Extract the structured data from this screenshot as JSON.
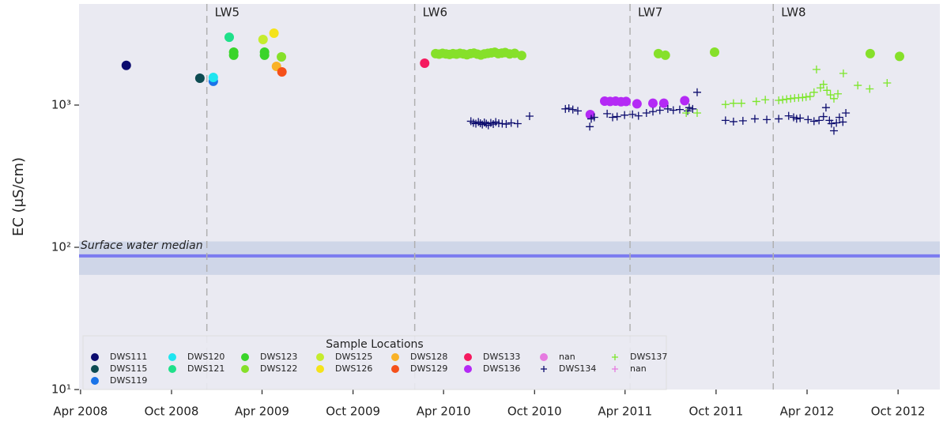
{
  "chart_data": {
    "type": "scatter",
    "y_label": "EC (μS/cm)",
    "x_scale": "time",
    "y_scale": "log",
    "xlim": [
      "2008-03-29",
      "2012-12-24"
    ],
    "ylim": [
      10,
      5140
    ],
    "xticks": [
      {
        "value": "2008-04-01",
        "label": "Apr 2008"
      },
      {
        "value": "2008-10-01",
        "label": "Oct 2008"
      },
      {
        "value": "2009-04-01",
        "label": "Apr 2009"
      },
      {
        "value": "2009-10-01",
        "label": "Oct 2009"
      },
      {
        "value": "2010-04-01",
        "label": "Apr 2010"
      },
      {
        "value": "2010-10-01",
        "label": "Oct 2010"
      },
      {
        "value": "2011-04-01",
        "label": "Apr 2011"
      },
      {
        "value": "2011-10-01",
        "label": "Oct 2011"
      },
      {
        "value": "2012-04-01",
        "label": "Apr 2012"
      },
      {
        "value": "2012-10-01",
        "label": "Oct 2012"
      }
    ],
    "yticks": [
      {
        "value": 10,
        "label": "10¹"
      },
      {
        "value": 100,
        "label": "10²"
      },
      {
        "value": 1000,
        "label": "10³"
      }
    ],
    "grid": false,
    "legend": {
      "title": "Sample Locations",
      "position": "lower left"
    },
    "annotations": [
      {
        "x": "2008-12-11",
        "label": "LW5"
      },
      {
        "x": "2010-02-02",
        "label": "LW6"
      },
      {
        "x": "2011-04-11",
        "label": "LW7"
      },
      {
        "x": "2012-01-24",
        "label": "LW8"
      }
    ],
    "reference": {
      "label": "Surface water median",
      "value": 87,
      "range": [
        64,
        110
      ],
      "color": "#7b7bf0"
    },
    "series": [
      {
        "name": "DWS111",
        "color": "#0b0b6e",
        "marker": "o",
        "x": [
          "2008-07-02"
        ],
        "values": [
          1900
        ]
      },
      {
        "name": "DWS115",
        "color": "#0d4b52",
        "marker": "o",
        "x": [
          "2008-11-27"
        ],
        "values": [
          1545
        ]
      },
      {
        "name": "DWS119",
        "color": "#1a73e8",
        "marker": "o",
        "x": [
          "2008-12-24"
        ],
        "values": [
          1470
        ]
      },
      {
        "name": "DWS120",
        "color": "#1fe5f0",
        "marker": "o",
        "x": [
          "2008-12-24"
        ],
        "values": [
          1565
        ]
      },
      {
        "name": "DWS121",
        "color": "#1fe08a",
        "marker": "o",
        "x": [
          "2009-01-25"
        ],
        "values": [
          3000
        ]
      },
      {
        "name": "DWS123",
        "color": "#3ad42a",
        "marker": "o",
        "x": [
          "2009-02-03",
          "2009-02-03",
          "2009-04-06",
          "2009-04-06"
        ],
        "values": [
          2355,
          2240,
          2355,
          2240
        ]
      },
      {
        "name": "DWS122",
        "color": "#86e02a",
        "marker": "o",
        "x": [
          "2009-05-10",
          "2010-03-16",
          "2010-03-23",
          "2010-03-30",
          "2010-04-06",
          "2010-04-13",
          "2010-04-20",
          "2010-04-27",
          "2010-05-04",
          "2010-05-11",
          "2010-05-18",
          "2010-05-25",
          "2010-06-01",
          "2010-06-08",
          "2010-06-15",
          "2010-06-22",
          "2010-06-29",
          "2010-07-06",
          "2010-07-13",
          "2010-07-20",
          "2010-07-27",
          "2010-08-03",
          "2010-08-12",
          "2010-08-22",
          "2010-09-05",
          "2011-06-07",
          "2011-06-21",
          "2011-09-28",
          "2012-08-06",
          "2012-10-04"
        ],
        "values": [
          2180,
          2300,
          2280,
          2310,
          2290,
          2270,
          2300,
          2280,
          2310,
          2290,
          2260,
          2300,
          2320,
          2280,
          2250,
          2290,
          2310,
          2330,
          2350,
          2300,
          2320,
          2340,
          2290,
          2310,
          2230,
          2300,
          2240,
          2355,
          2300,
          2200
        ]
      },
      {
        "name": "DWS125",
        "color": "#c5ec2e",
        "marker": "o",
        "x": [
          "2009-04-03"
        ],
        "values": [
          2890
        ]
      },
      {
        "name": "DWS126",
        "color": "#f5e31a",
        "marker": "o",
        "x": [
          "2009-04-25"
        ],
        "values": [
          3200
        ]
      },
      {
        "name": "DWS128",
        "color": "#f9b227",
        "marker": "o",
        "x": [
          "2009-04-30"
        ],
        "values": [
          1870
        ]
      },
      {
        "name": "DWS129",
        "color": "#f5501a",
        "marker": "o",
        "x": [
          "2009-05-11"
        ],
        "values": [
          1712
        ]
      },
      {
        "name": "DWS133",
        "color": "#f51a5f",
        "marker": "o",
        "x": [
          "2010-02-22"
        ],
        "values": [
          1970
        ]
      },
      {
        "name": "DWS136",
        "color": "#b42af5",
        "marker": "o",
        "x": [
          "2011-01-21",
          "2011-02-19",
          "2011-03-02",
          "2011-03-13",
          "2011-03-24",
          "2011-04-03",
          "2011-04-25",
          "2011-05-27",
          "2011-06-18",
          "2011-07-30"
        ],
        "values": [
          858,
          1066,
          1060,
          1066,
          1055,
          1060,
          1020,
          1030,
          1030,
          1075
        ]
      },
      {
        "name": "nan",
        "color": "#e67ae0",
        "marker": "o",
        "x": [],
        "values": []
      },
      {
        "name": "DWS134",
        "color": "#0d0d6e",
        "marker": "+",
        "x": [
          "2010-05-26",
          "2010-05-31",
          "2010-06-05",
          "2010-06-10",
          "2010-06-14",
          "2010-06-18",
          "2010-06-22",
          "2010-06-26",
          "2010-06-30",
          "2010-07-05",
          "2010-07-10",
          "2010-07-15",
          "2010-07-21",
          "2010-07-28",
          "2010-08-05",
          "2010-08-15",
          "2010-08-28",
          "2010-09-21",
          "2010-12-02",
          "2010-12-09",
          "2010-12-17",
          "2010-12-27",
          "2011-01-23",
          "2011-01-29",
          "2011-01-20",
          "2011-02-24",
          "2011-03-07",
          "2011-03-16",
          "2011-03-31",
          "2011-04-16",
          "2011-04-28",
          "2011-05-14",
          "2011-05-27",
          "2011-06-10",
          "2011-06-26",
          "2011-07-07",
          "2011-07-20",
          "2011-08-05",
          "2011-08-08",
          "2011-08-15",
          "2011-08-24",
          "2011-10-20",
          "2011-11-05",
          "2011-11-24",
          "2011-12-18",
          "2012-01-11",
          "2012-02-04",
          "2012-02-24",
          "2012-03-05",
          "2012-03-11",
          "2012-03-18",
          "2012-04-03",
          "2012-04-15",
          "2012-04-25",
          "2012-05-04",
          "2012-05-09",
          "2012-05-16",
          "2012-05-20",
          "2012-05-25",
          "2012-05-30",
          "2012-06-05",
          "2012-06-12",
          "2012-06-18"
        ],
        "values": [
          770,
          750,
          740,
          760,
          745,
          730,
          755,
          740,
          720,
          750,
          735,
          760,
          745,
          740,
          735,
          750,
          740,
          836,
          940,
          950,
          930,
          910,
          800,
          820,
          705,
          870,
          820,
          830,
          850,
          860,
          840,
          880,
          900,
          920,
          940,
          920,
          930,
          910,
          960,
          940,
          1230,
          780,
          765,
          775,
          800,
          790,
          800,
          840,
          820,
          800,
          810,
          790,
          770,
          780,
          830,
          960,
          780,
          740,
          660,
          750,
          820,
          760,
          880
        ]
      },
      {
        "name": "DWS137",
        "color": "#7ce62a",
        "marker": "+",
        "x": [
          "2011-08-02",
          "2011-08-24",
          "2011-10-20",
          "2011-11-05",
          "2011-11-21",
          "2011-12-21",
          "2012-01-08",
          "2012-02-04",
          "2012-02-12",
          "2012-02-20",
          "2012-02-28",
          "2012-03-07",
          "2012-03-15",
          "2012-03-23",
          "2012-03-30",
          "2012-04-07",
          "2012-04-15",
          "2012-04-20",
          "2012-04-28",
          "2012-05-04",
          "2012-05-11",
          "2012-05-18",
          "2012-05-25",
          "2012-06-02",
          "2012-06-13",
          "2012-07-12",
          "2012-08-05",
          "2012-09-09"
        ],
        "values": [
          880,
          880,
          1010,
          1030,
          1030,
          1060,
          1090,
          1080,
          1090,
          1100,
          1110,
          1120,
          1125,
          1130,
          1140,
          1150,
          1230,
          1780,
          1320,
          1400,
          1270,
          1180,
          1110,
          1200,
          1670,
          1375,
          1300,
          1430
        ]
      },
      {
        "name": "nan",
        "color": "#e67ae0",
        "marker": "+",
        "x": [],
        "values": []
      }
    ]
  }
}
